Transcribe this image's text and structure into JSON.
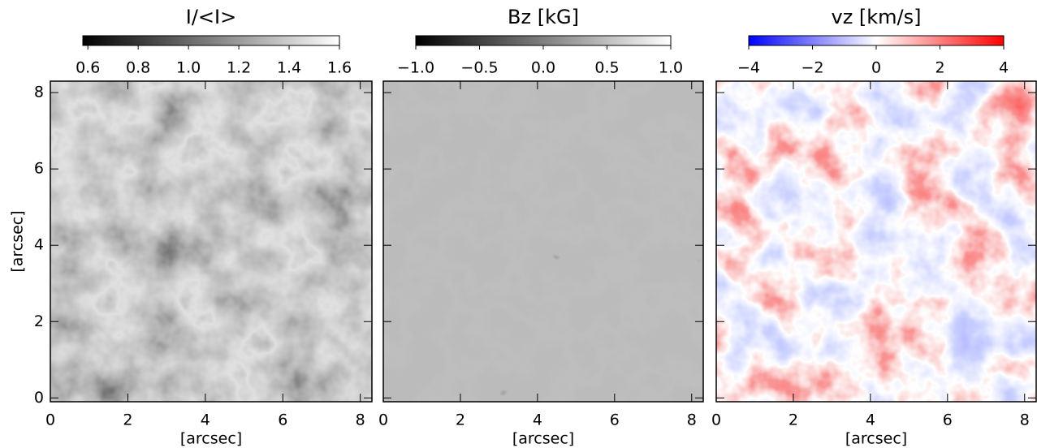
{
  "chart_data": [
    {
      "type": "image",
      "title": "I/<I>",
      "xlabel": "[arcsec]",
      "ylabel": "[arcsec]",
      "xlim": [
        0,
        8.3
      ],
      "ylim": [
        -0.1,
        8.3
      ],
      "xticks": [
        0,
        2,
        4,
        6,
        8
      ],
      "yticks": [
        0,
        2,
        4,
        6,
        8
      ],
      "colormap": [
        "#000000",
        "#ffffff"
      ],
      "clim": [
        0.58,
        1.6
      ],
      "cticks": [
        0.6,
        0.8,
        {
          "value": 1,
          "label": "1.0"
        },
        1.2,
        1.4,
        1.6
      ]
    },
    {
      "type": "image",
      "title": "Bz [kG]",
      "xlabel": "[arcsec]",
      "xlim": [
        0,
        8.3
      ],
      "ylim": [
        -0.1,
        8.3
      ],
      "xticks": [
        0,
        2,
        4,
        6,
        8
      ],
      "yticks": [
        0,
        2,
        4,
        6,
        8
      ],
      "colormap": [
        "#000000",
        "#ffffff"
      ],
      "clim": [
        -1,
        1
      ],
      "cticks": [
        {
          "value": -1,
          "label": "−1.0"
        },
        {
          "value": -0.5,
          "label": "−0.5"
        },
        {
          "value": 0,
          "label": "0.0"
        },
        0.5,
        {
          "value": 1,
          "label": "1.0"
        }
      ]
    },
    {
      "type": "image",
      "title": "vz [km/s]",
      "xlabel": "[arcsec]",
      "xlim": [
        0,
        8.3
      ],
      "ylim": [
        -0.1,
        8.3
      ],
      "xticks": [
        0,
        2,
        4,
        6,
        8
      ],
      "yticks": [
        0,
        2,
        4,
        6,
        8
      ],
      "colormap": [
        "#0000ff",
        "#ffffff",
        "#ff0000"
      ],
      "clim": [
        -4,
        4
      ],
      "cticks": [
        {
          "value": -4,
          "label": "−4"
        },
        {
          "value": -2,
          "label": "−2"
        },
        0,
        2,
        4
      ]
    }
  ]
}
